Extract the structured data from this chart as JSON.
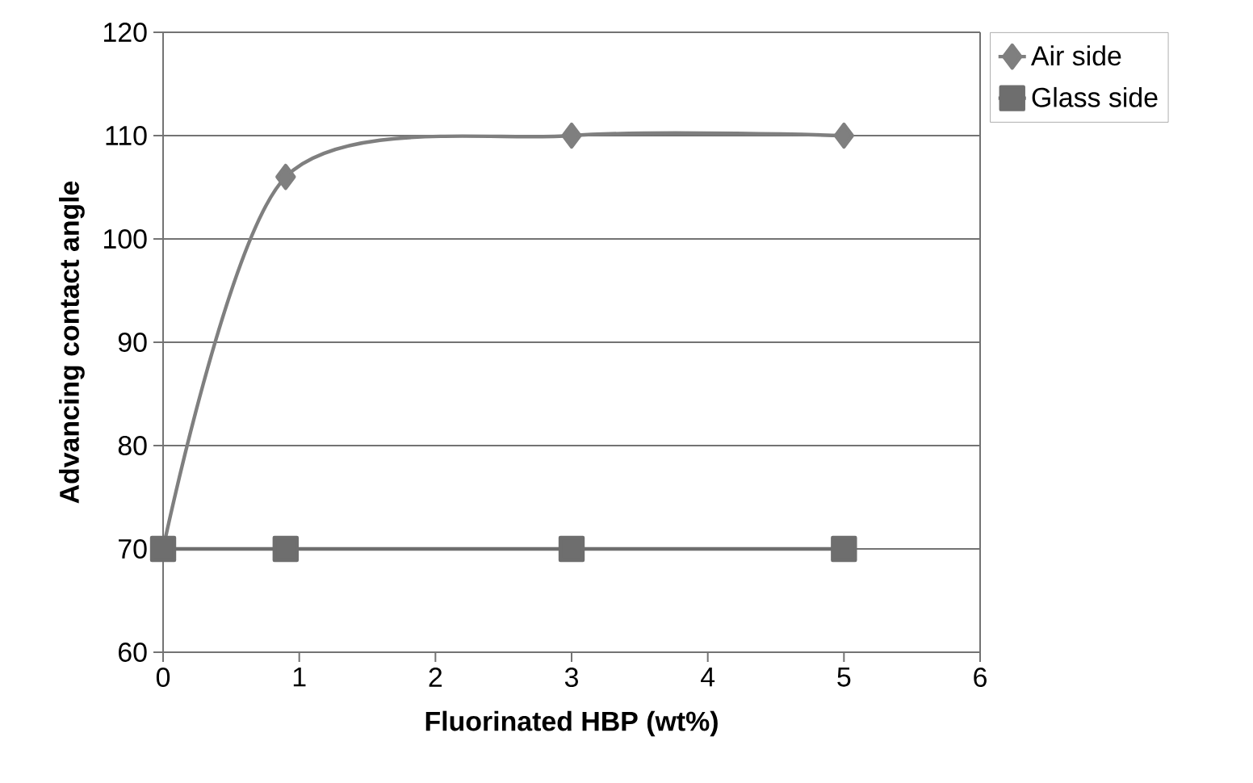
{
  "chart_data": {
    "type": "line",
    "xlabel": "Fluorinated HBP (wt%)",
    "ylabel": "Advancing contact angle",
    "x": [
      0,
      0.9,
      3,
      5
    ],
    "series": [
      {
        "name": "Air side",
        "color": "#7f7f7f",
        "values": [
          70,
          106,
          110,
          110
        ],
        "marker": "diamond"
      },
      {
        "name": "Glass side",
        "color": "#6e6e6e",
        "values": [
          70,
          70,
          70,
          70
        ],
        "marker": "square"
      }
    ],
    "xlim": [
      0,
      6
    ],
    "xticks": [
      0,
      1,
      2,
      3,
      4,
      5,
      6
    ],
    "ylim": [
      60,
      120
    ],
    "yticks": [
      60,
      70,
      80,
      90,
      100,
      110,
      120
    ],
    "grid": "y",
    "legend": "top right",
    "line_style": "solid"
  }
}
